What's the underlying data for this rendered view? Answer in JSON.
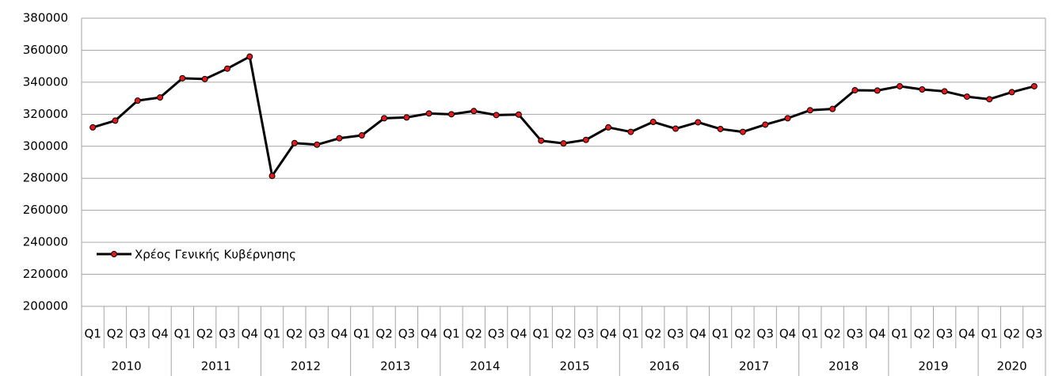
{
  "chart_data": {
    "type": "line",
    "categories": [
      "Q1",
      "Q2",
      "Q3",
      "Q4",
      "Q1",
      "Q2",
      "Q3",
      "Q4",
      "Q1",
      "Q2",
      "Q3",
      "Q4",
      "Q1",
      "Q2",
      "Q3",
      "Q4",
      "Q1",
      "Q2",
      "Q3",
      "Q4",
      "Q1",
      "Q2",
      "Q3",
      "Q4",
      "Q1",
      "Q2",
      "Q3",
      "Q4",
      "Q1",
      "Q2",
      "Q3",
      "Q4",
      "Q1",
      "Q2",
      "Q3",
      "Q4",
      "Q1",
      "Q2",
      "Q3",
      "Q4",
      "Q1",
      "Q2",
      "Q3"
    ],
    "years": [
      "2010",
      "2011",
      "2012",
      "2013",
      "2014",
      "2015",
      "2016",
      "2017",
      "2018",
      "2019",
      "2020"
    ],
    "series": [
      {
        "name": "Χρέος Γενικής Κυβέρνησης",
        "color": "#000000",
        "marker_color": "#e31a1c",
        "values": [
          311800,
          316000,
          328500,
          330500,
          342500,
          342000,
          348500,
          356000,
          281500,
          302000,
          301000,
          305000,
          306800,
          317500,
          318000,
          320500,
          320000,
          322000,
          319500,
          319800,
          303500,
          301800,
          304000,
          311800,
          309000,
          315200,
          311000,
          315000,
          310800,
          309000,
          313500,
          317500,
          322500,
          323300,
          335000,
          334800,
          337500,
          335500,
          334300,
          331000,
          329400,
          333800,
          337500
        ]
      }
    ],
    "ylim": [
      200000,
      380000
    ],
    "yticks": [
      200000,
      220000,
      240000,
      260000,
      280000,
      300000,
      320000,
      340000,
      360000,
      380000
    ],
    "grid": true,
    "legend": "left"
  }
}
